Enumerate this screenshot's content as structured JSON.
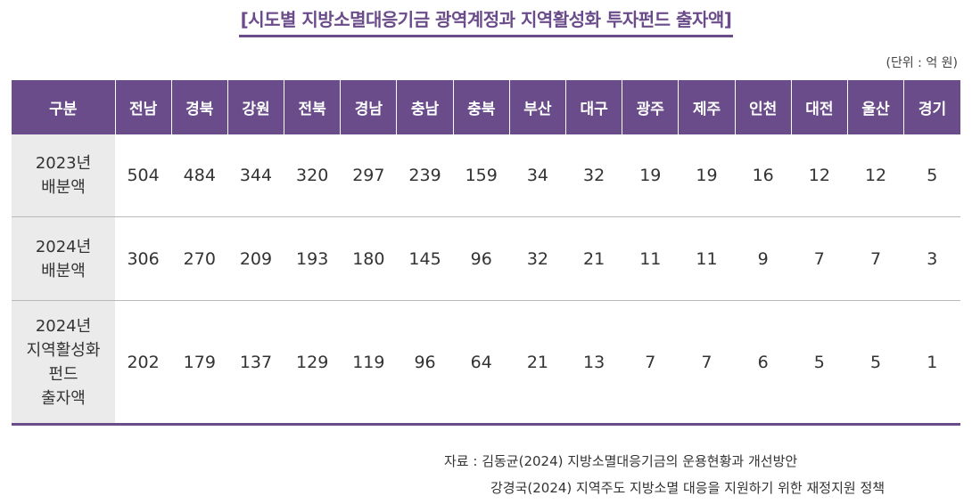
{
  "title": "[시도별 지방소멸대응기금 광역계정과 지역활성화 투자펀드 출자액]",
  "unit": "(단위 : 억 원)",
  "table": {
    "corner": "구분",
    "regions": [
      "전남",
      "경북",
      "강원",
      "전북",
      "경남",
      "충남",
      "충북",
      "부산",
      "대구",
      "광주",
      "제주",
      "인천",
      "대전",
      "울산",
      "경기"
    ],
    "rows": [
      {
        "label": [
          "2023년",
          "배분액"
        ],
        "values": [
          "504",
          "484",
          "344",
          "320",
          "297",
          "239",
          "159",
          "34",
          "32",
          "19",
          "19",
          "16",
          "12",
          "12",
          "5"
        ]
      },
      {
        "label": [
          "2024년",
          "배분액"
        ],
        "values": [
          "306",
          "270",
          "209",
          "193",
          "180",
          "145",
          "96",
          "32",
          "21",
          "11",
          "11",
          "9",
          "7",
          "7",
          "3"
        ]
      },
      {
        "label": [
          "2024년",
          "지역활성화",
          "펀드",
          "출자액"
        ],
        "values": [
          "202",
          "179",
          "137",
          "129",
          "119",
          "96",
          "64",
          "21",
          "13",
          "7",
          "7",
          "6",
          "5",
          "5",
          "1"
        ]
      }
    ]
  },
  "source": {
    "line1": "자료 : 김동균(2024) 지방소멸대응기금의 운용현황과 개선방안",
    "line2": "강경국(2024) 지역주도 지방소멸 대응을 지원하기 위한 재정지원 정책"
  }
}
